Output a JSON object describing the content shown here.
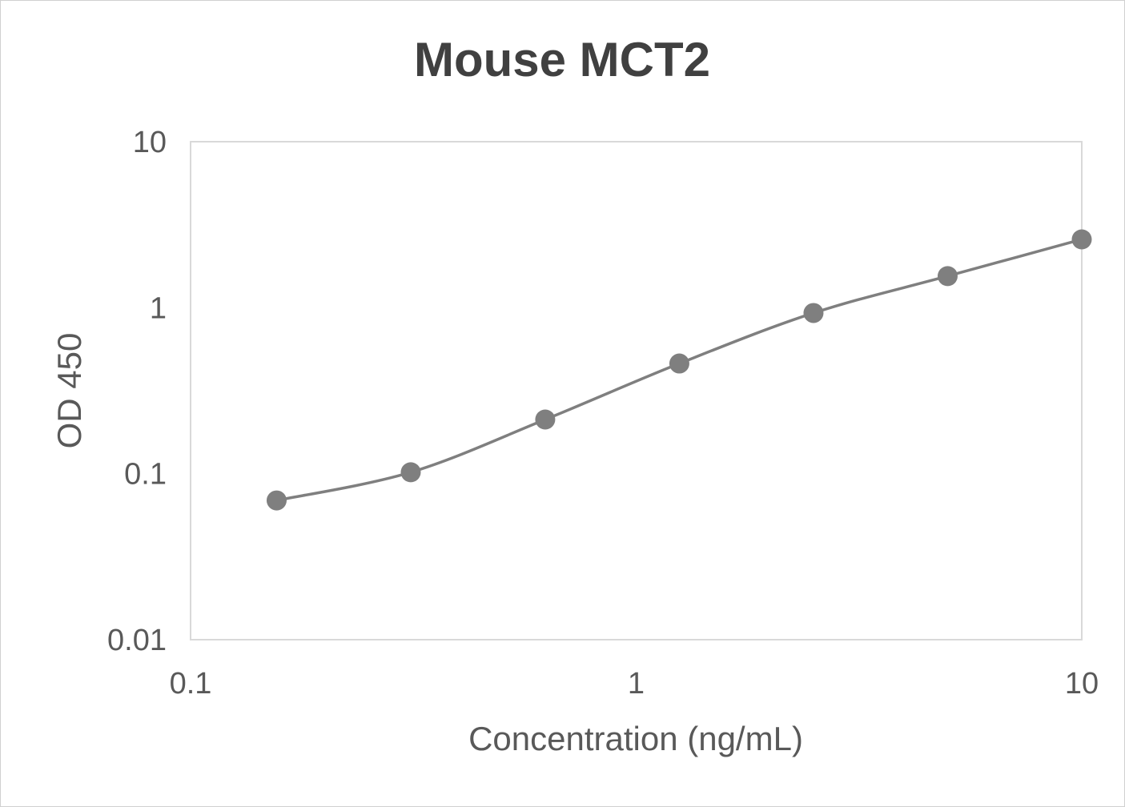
{
  "chart_data": {
    "type": "scatter",
    "title": "Mouse MCT2",
    "xlabel": "Concentration (ng/mL)",
    "ylabel": "OD 450",
    "x_scale": "log",
    "y_scale": "log",
    "xlim": [
      0.1,
      10
    ],
    "ylim": [
      0.01,
      10
    ],
    "x_ticks": [
      "0.1",
      "1",
      "10"
    ],
    "y_ticks": [
      "0.01",
      "0.1",
      "1",
      "10"
    ],
    "grid": false,
    "legend": "none",
    "line": "smoothed",
    "color": "#7f7f7f",
    "series": [
      {
        "x": [
          0.156,
          0.312,
          0.625,
          1.25,
          2.5,
          5,
          10
        ],
        "y": [
          0.069,
          0.102,
          0.212,
          0.461,
          0.929,
          1.55,
          2.58
        ]
      }
    ]
  }
}
